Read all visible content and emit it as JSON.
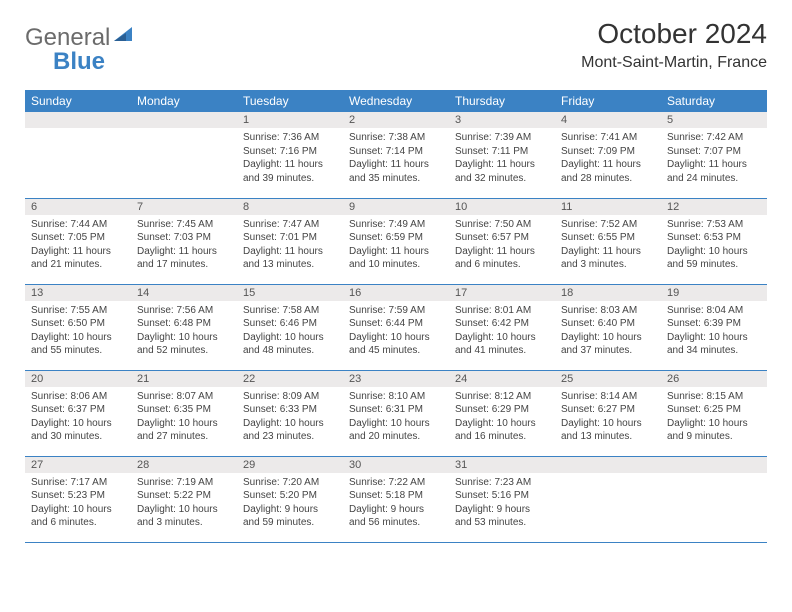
{
  "brand": {
    "part1": "General",
    "part2": "Blue"
  },
  "title": "October 2024",
  "location": "Mont-Saint-Martin, France",
  "colors": {
    "header_bg": "#3b82c4",
    "header_text": "#ffffff",
    "daynum_bg": "#eceaea",
    "row_border": "#3b82c4",
    "brand_gray": "#6b6b6b",
    "brand_blue": "#3b82c4"
  },
  "weekdays": [
    "Sunday",
    "Monday",
    "Tuesday",
    "Wednesday",
    "Thursday",
    "Friday",
    "Saturday"
  ],
  "weeks": [
    [
      {
        "n": "",
        "sr": "",
        "ss": "",
        "dl": ""
      },
      {
        "n": "",
        "sr": "",
        "ss": "",
        "dl": ""
      },
      {
        "n": "1",
        "sr": "Sunrise: 7:36 AM",
        "ss": "Sunset: 7:16 PM",
        "dl": "Daylight: 11 hours and 39 minutes."
      },
      {
        "n": "2",
        "sr": "Sunrise: 7:38 AM",
        "ss": "Sunset: 7:14 PM",
        "dl": "Daylight: 11 hours and 35 minutes."
      },
      {
        "n": "3",
        "sr": "Sunrise: 7:39 AM",
        "ss": "Sunset: 7:11 PM",
        "dl": "Daylight: 11 hours and 32 minutes."
      },
      {
        "n": "4",
        "sr": "Sunrise: 7:41 AM",
        "ss": "Sunset: 7:09 PM",
        "dl": "Daylight: 11 hours and 28 minutes."
      },
      {
        "n": "5",
        "sr": "Sunrise: 7:42 AM",
        "ss": "Sunset: 7:07 PM",
        "dl": "Daylight: 11 hours and 24 minutes."
      }
    ],
    [
      {
        "n": "6",
        "sr": "Sunrise: 7:44 AM",
        "ss": "Sunset: 7:05 PM",
        "dl": "Daylight: 11 hours and 21 minutes."
      },
      {
        "n": "7",
        "sr": "Sunrise: 7:45 AM",
        "ss": "Sunset: 7:03 PM",
        "dl": "Daylight: 11 hours and 17 minutes."
      },
      {
        "n": "8",
        "sr": "Sunrise: 7:47 AM",
        "ss": "Sunset: 7:01 PM",
        "dl": "Daylight: 11 hours and 13 minutes."
      },
      {
        "n": "9",
        "sr": "Sunrise: 7:49 AM",
        "ss": "Sunset: 6:59 PM",
        "dl": "Daylight: 11 hours and 10 minutes."
      },
      {
        "n": "10",
        "sr": "Sunrise: 7:50 AM",
        "ss": "Sunset: 6:57 PM",
        "dl": "Daylight: 11 hours and 6 minutes."
      },
      {
        "n": "11",
        "sr": "Sunrise: 7:52 AM",
        "ss": "Sunset: 6:55 PM",
        "dl": "Daylight: 11 hours and 3 minutes."
      },
      {
        "n": "12",
        "sr": "Sunrise: 7:53 AM",
        "ss": "Sunset: 6:53 PM",
        "dl": "Daylight: 10 hours and 59 minutes."
      }
    ],
    [
      {
        "n": "13",
        "sr": "Sunrise: 7:55 AM",
        "ss": "Sunset: 6:50 PM",
        "dl": "Daylight: 10 hours and 55 minutes."
      },
      {
        "n": "14",
        "sr": "Sunrise: 7:56 AM",
        "ss": "Sunset: 6:48 PM",
        "dl": "Daylight: 10 hours and 52 minutes."
      },
      {
        "n": "15",
        "sr": "Sunrise: 7:58 AM",
        "ss": "Sunset: 6:46 PM",
        "dl": "Daylight: 10 hours and 48 minutes."
      },
      {
        "n": "16",
        "sr": "Sunrise: 7:59 AM",
        "ss": "Sunset: 6:44 PM",
        "dl": "Daylight: 10 hours and 45 minutes."
      },
      {
        "n": "17",
        "sr": "Sunrise: 8:01 AM",
        "ss": "Sunset: 6:42 PM",
        "dl": "Daylight: 10 hours and 41 minutes."
      },
      {
        "n": "18",
        "sr": "Sunrise: 8:03 AM",
        "ss": "Sunset: 6:40 PM",
        "dl": "Daylight: 10 hours and 37 minutes."
      },
      {
        "n": "19",
        "sr": "Sunrise: 8:04 AM",
        "ss": "Sunset: 6:39 PM",
        "dl": "Daylight: 10 hours and 34 minutes."
      }
    ],
    [
      {
        "n": "20",
        "sr": "Sunrise: 8:06 AM",
        "ss": "Sunset: 6:37 PM",
        "dl": "Daylight: 10 hours and 30 minutes."
      },
      {
        "n": "21",
        "sr": "Sunrise: 8:07 AM",
        "ss": "Sunset: 6:35 PM",
        "dl": "Daylight: 10 hours and 27 minutes."
      },
      {
        "n": "22",
        "sr": "Sunrise: 8:09 AM",
        "ss": "Sunset: 6:33 PM",
        "dl": "Daylight: 10 hours and 23 minutes."
      },
      {
        "n": "23",
        "sr": "Sunrise: 8:10 AM",
        "ss": "Sunset: 6:31 PM",
        "dl": "Daylight: 10 hours and 20 minutes."
      },
      {
        "n": "24",
        "sr": "Sunrise: 8:12 AM",
        "ss": "Sunset: 6:29 PM",
        "dl": "Daylight: 10 hours and 16 minutes."
      },
      {
        "n": "25",
        "sr": "Sunrise: 8:14 AM",
        "ss": "Sunset: 6:27 PM",
        "dl": "Daylight: 10 hours and 13 minutes."
      },
      {
        "n": "26",
        "sr": "Sunrise: 8:15 AM",
        "ss": "Sunset: 6:25 PM",
        "dl": "Daylight: 10 hours and 9 minutes."
      }
    ],
    [
      {
        "n": "27",
        "sr": "Sunrise: 7:17 AM",
        "ss": "Sunset: 5:23 PM",
        "dl": "Daylight: 10 hours and 6 minutes."
      },
      {
        "n": "28",
        "sr": "Sunrise: 7:19 AM",
        "ss": "Sunset: 5:22 PM",
        "dl": "Daylight: 10 hours and 3 minutes."
      },
      {
        "n": "29",
        "sr": "Sunrise: 7:20 AM",
        "ss": "Sunset: 5:20 PM",
        "dl": "Daylight: 9 hours and 59 minutes."
      },
      {
        "n": "30",
        "sr": "Sunrise: 7:22 AM",
        "ss": "Sunset: 5:18 PM",
        "dl": "Daylight: 9 hours and 56 minutes."
      },
      {
        "n": "31",
        "sr": "Sunrise: 7:23 AM",
        "ss": "Sunset: 5:16 PM",
        "dl": "Daylight: 9 hours and 53 minutes."
      },
      {
        "n": "",
        "sr": "",
        "ss": "",
        "dl": ""
      },
      {
        "n": "",
        "sr": "",
        "ss": "",
        "dl": ""
      }
    ]
  ]
}
